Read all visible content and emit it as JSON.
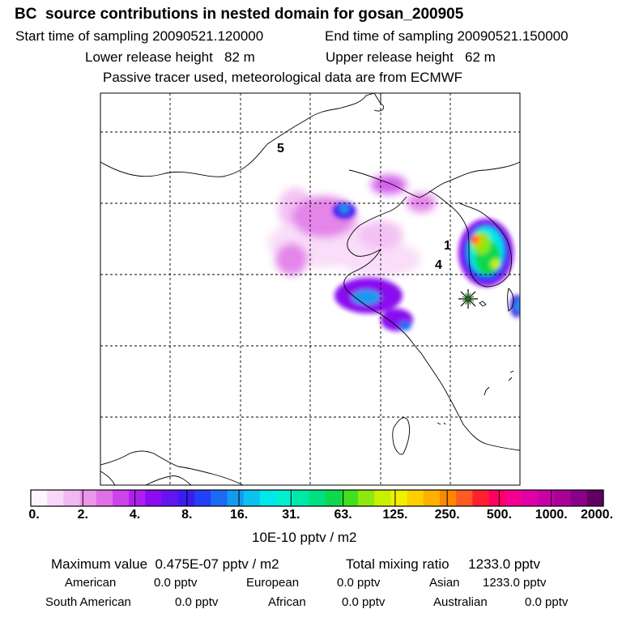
{
  "header": {
    "title": "BC  source contributions in nested domain for gosan_200905",
    "start_time": "Start time of sampling 20090521.120000",
    "end_time": "End time of sampling 20090521.150000",
    "lower_height": "Lower release height   82 m",
    "upper_height": "Upper release height   62 m",
    "tracer_note": "Passive tracer used, meteorological data are from ECMWF"
  },
  "map": {
    "cluster_labels": [
      "5",
      "1",
      "4"
    ],
    "receptor_marker": "star-burst-icon"
  },
  "colorbar": {
    "tick_labels": [
      "0.",
      "2.",
      "4.",
      "8.",
      "16.",
      "31.",
      "63.",
      "125.",
      "250.",
      "500.",
      "1000.",
      "2000."
    ],
    "colors": [
      "#fdf4fd",
      "#f8d8f8",
      "#f2b8f2",
      "#eb96eb",
      "#e070e6",
      "#cc44ea",
      "#b01eee",
      "#8a0cf0",
      "#6414f0",
      "#3c1cf0",
      "#2440f6",
      "#1c6af4",
      "#149aee",
      "#0cc2ee",
      "#00e8e8",
      "#00f0d0",
      "#00e8a8",
      "#00e080",
      "#10d84e",
      "#40e020",
      "#8ce810",
      "#c8f000",
      "#f0f000",
      "#ffd000",
      "#ffb000",
      "#ff8800",
      "#ff5a20",
      "#ff2030",
      "#ff0060",
      "#f40090",
      "#e000a8",
      "#c800a8",
      "#aa0098",
      "#880088",
      "#600060"
    ],
    "units": "10E-10 pptv / m2"
  },
  "stats": {
    "max_label": "Maximum value  0.475E-07 pptv / m2",
    "total_label": "Total mixing ratio     1233.0 pptv",
    "american_label": "American",
    "american_value": "0.0 pptv",
    "european_label": "European",
    "european_value": "0.0 pptv",
    "asian_label": "Asian",
    "asian_value": "1233.0 pptv",
    "south_american_label": "South American",
    "south_american_value": "0.0 pptv",
    "african_label": "African",
    "african_value": "0.0 pptv",
    "australian_label": "Australian",
    "australian_value": "0.0 pptv"
  }
}
